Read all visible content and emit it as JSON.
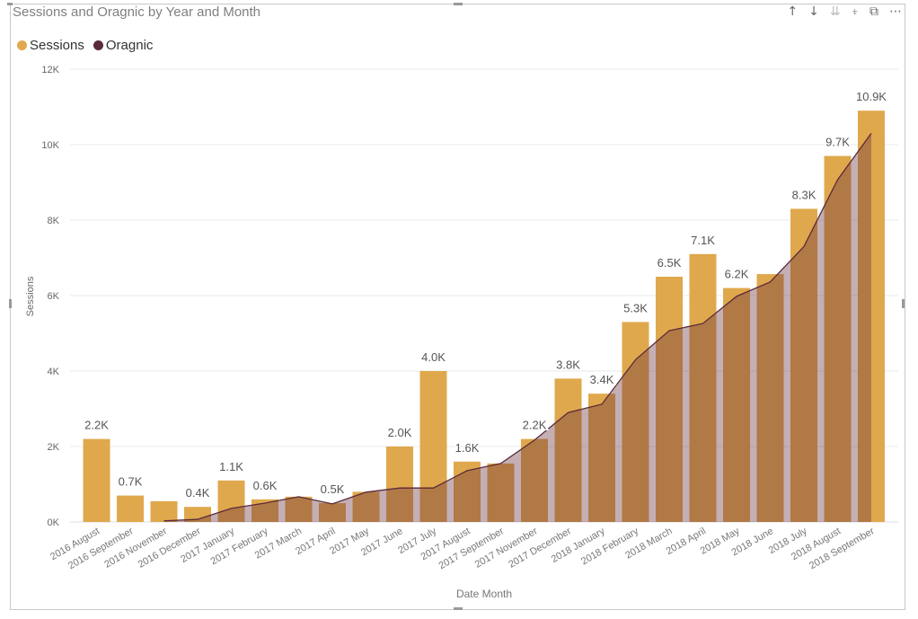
{
  "header": {
    "title": "Sessions and Oragnic by Year and Month",
    "icons": [
      "sort-ascending-icon",
      "sort-descending-icon",
      "expand-all-down-icon",
      "drill-down-icon",
      "focus-mode-icon",
      "more-options-icon"
    ]
  },
  "colors": {
    "sessions": "#E0A84C",
    "organic": "#5A2A3A",
    "organic_fill": "rgba(100,45,60,0.38)",
    "grid": "#e6e6e6",
    "text": "#666666"
  },
  "chart_data": {
    "type": "bar",
    "title": "Sessions and Oragnic by Year and Month",
    "xlabel": "Date Month",
    "ylabel": "Sessions",
    "ylim": [
      0,
      12000
    ],
    "yticks": [
      0,
      2000,
      4000,
      6000,
      8000,
      10000,
      12000
    ],
    "ytick_labels": [
      "0K",
      "2K",
      "4K",
      "6K",
      "8K",
      "10K",
      "12K"
    ],
    "grid": true,
    "legend": {
      "placement": "top-left",
      "entries": [
        "Sessions",
        "Oragnic"
      ]
    },
    "categories": [
      "2016 August",
      "2016 September",
      "2016 November",
      "2016 December",
      "2017 January",
      "2017 February",
      "2017 March",
      "2017 April",
      "2017 May",
      "2017 June",
      "2017 July",
      "2017 August",
      "2017 September",
      "2017 November",
      "2017 December",
      "2018 January",
      "2018 February",
      "2018 March",
      "2018 April",
      "2018 May",
      "2018 June",
      "2018 July",
      "2018 August",
      "2018 September"
    ],
    "series": [
      {
        "name": "Sessions",
        "type": "bar",
        "values": [
          2200,
          700,
          550,
          400,
          1100,
          600,
          670,
          500,
          800,
          2000,
          4000,
          1600,
          1550,
          2200,
          3800,
          3400,
          5300,
          6500,
          7100,
          6200,
          6570,
          8300,
          9700,
          10900
        ],
        "data_labels": [
          "2.2K",
          "0.7K",
          "",
          "0.4K",
          "1.1K",
          "0.6K",
          "",
          "0.5K",
          "",
          "2.0K",
          "4.0K",
          "1.6K",
          "",
          "2.2K",
          "3.8K",
          "3.4K",
          "5.3K",
          "6.5K",
          "7.1K",
          "6.2K",
          "",
          "8.3K",
          "9.7K",
          "10.9K"
        ]
      },
      {
        "name": "Oragnic",
        "type": "area",
        "values": [
          null,
          null,
          30,
          70,
          360,
          500,
          670,
          480,
          790,
          900,
          900,
          1360,
          1550,
          2170,
          2900,
          3120,
          4300,
          5070,
          5260,
          5980,
          6360,
          7300,
          9070,
          10300
        ]
      }
    ]
  }
}
